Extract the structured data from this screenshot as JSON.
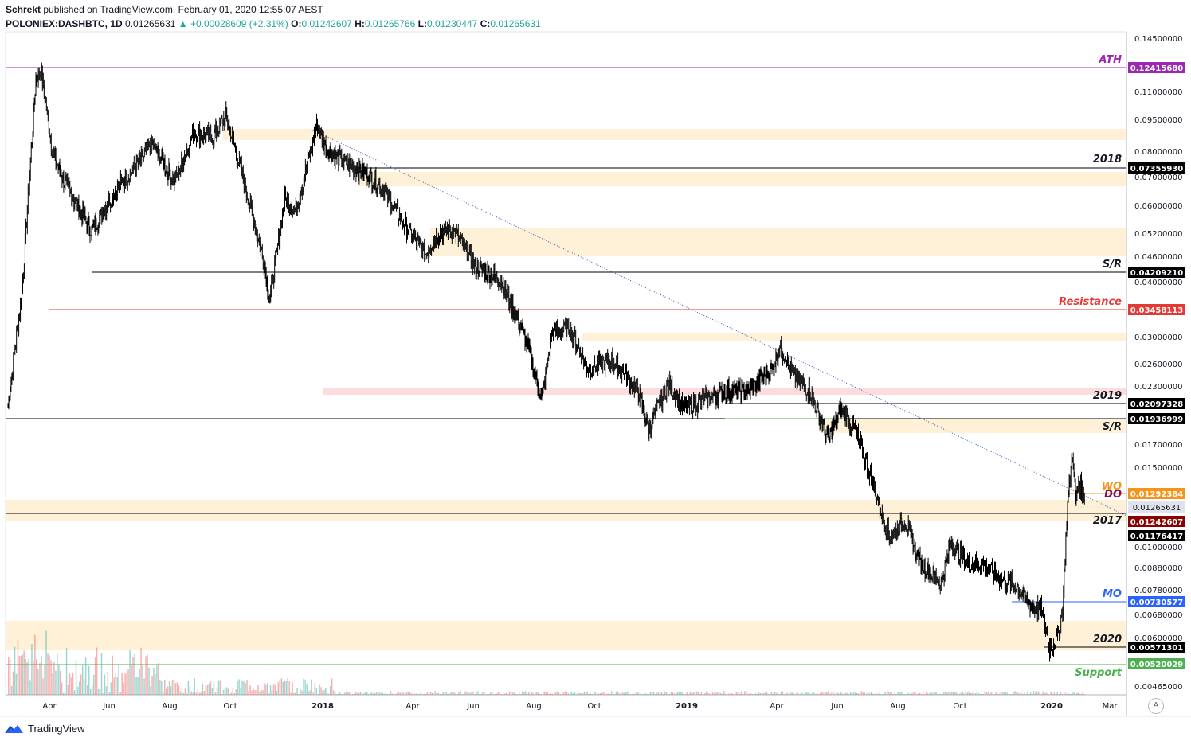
{
  "header": {
    "author": "Schrekt",
    "published": "published on TradingView.com, February 01, 2020 12:55:07 AEST",
    "symbol": "POLONIEX:DASHBTC, 1D",
    "last": "0.01265631",
    "change": "▲ +0.00028609 (+2.31%)",
    "o_label": "O:",
    "o_value": "0.01242607",
    "h_label": "H:",
    "h_value": "0.01265766",
    "l_label": "L:",
    "l_value": "0.01230447",
    "c_label": "C:",
    "c_value": "0.01265631"
  },
  "footer": {
    "brand": "TradingView",
    "auto_scale_button": "A"
  },
  "colors": {
    "up": "#26a69a",
    "down": "#ef5350",
    "zone": "#fdebc8",
    "ath": "#9c27b0",
    "resistance": "#e53935",
    "mo": "#2962ff",
    "wo": "#f7931a",
    "do": "#880e4f",
    "support": "#4caf50",
    "pinkzone": "#fbd3d3"
  },
  "chart_data": {
    "type": "candlestick",
    "scale": "log",
    "ylim": [
      0.0043,
      0.152
    ],
    "x_ticks": [
      "Apr",
      "Jun",
      "Aug",
      "Oct",
      "2018",
      "Apr",
      "Jun",
      "Aug",
      "Oct",
      "2019",
      "Apr",
      "Jun",
      "Aug",
      "Oct",
      "2020",
      "Mar"
    ],
    "y_ticks": [
      "0.14500000",
      "0.11000000",
      "0.09500000",
      "0.08000000",
      "0.07000000",
      "0.06000000",
      "0.05200000",
      "0.04600000",
      "0.04000000",
      "0.03000000",
      "0.02600000",
      "0.02300000",
      "0.01700000",
      "0.01500000",
      "0.01000000",
      "0.00880000",
      "0.00780000",
      "0.00680000",
      "0.00600000",
      "0.00465000"
    ],
    "price_path": [
      [
        "2017-02-15",
        0.0205
      ],
      [
        "2017-03-01",
        0.0375
      ],
      [
        "2017-03-15",
        0.118
      ],
      [
        "2017-03-20",
        0.124
      ],
      [
        "2017-04-01",
        0.079
      ],
      [
        "2017-04-15",
        0.066
      ],
      [
        "2017-05-10",
        0.052
      ],
      [
        "2017-06-01",
        0.064
      ],
      [
        "2017-06-20",
        0.072
      ],
      [
        "2017-07-10",
        0.083
      ],
      [
        "2017-08-01",
        0.068
      ],
      [
        "2017-08-20",
        0.088
      ],
      [
        "2017-09-10",
        0.087
      ],
      [
        "2017-09-22",
        0.097
      ],
      [
        "2017-10-10",
        0.068
      ],
      [
        "2017-10-30",
        0.044
      ],
      [
        "2017-11-05",
        0.036
      ],
      [
        "2017-11-20",
        0.062
      ],
      [
        "2017-12-01",
        0.058
      ],
      [
        "2017-12-22",
        0.092
      ],
      [
        "2018-01-01",
        0.081
      ],
      [
        "2018-01-20",
        0.075
      ],
      [
        "2018-02-10",
        0.071
      ],
      [
        "2018-03-01",
        0.064
      ],
      [
        "2018-03-20",
        0.054
      ],
      [
        "2018-04-10",
        0.046
      ],
      [
        "2018-04-25",
        0.052
      ],
      [
        "2018-05-10",
        0.052
      ],
      [
        "2018-05-30",
        0.043
      ],
      [
        "2018-06-25",
        0.04
      ],
      [
        "2018-07-20",
        0.029
      ],
      [
        "2018-08-05",
        0.021
      ],
      [
        "2018-08-15",
        0.03
      ],
      [
        "2018-09-01",
        0.031
      ],
      [
        "2018-09-20",
        0.025
      ],
      [
        "2018-10-15",
        0.026
      ],
      [
        "2018-11-10",
        0.022
      ],
      [
        "2018-11-20",
        0.018
      ],
      [
        "2018-12-10",
        0.023
      ],
      [
        "2018-12-25",
        0.02
      ],
      [
        "2019-01-15",
        0.021
      ],
      [
        "2019-02-05",
        0.022
      ],
      [
        "2019-03-01",
        0.022
      ],
      [
        "2019-03-25",
        0.025
      ],
      [
        "2019-04-01",
        0.028
      ],
      [
        "2019-04-15",
        0.024
      ],
      [
        "2019-05-01",
        0.022
      ],
      [
        "2019-05-20",
        0.017
      ],
      [
        "2019-06-01",
        0.02
      ],
      [
        "2019-06-15",
        0.018
      ],
      [
        "2019-07-01",
        0.014
      ],
      [
        "2019-07-20",
        0.01
      ],
      [
        "2019-08-05",
        0.011
      ],
      [
        "2019-08-20",
        0.0087
      ],
      [
        "2019-09-10",
        0.0078
      ],
      [
        "2019-09-20",
        0.0098
      ],
      [
        "2019-10-05",
        0.0088
      ],
      [
        "2019-10-25",
        0.0086
      ],
      [
        "2019-11-10",
        0.008
      ],
      [
        "2019-11-25",
        0.0077
      ],
      [
        "2019-12-10",
        0.0069
      ],
      [
        "2019-12-20",
        0.0068
      ],
      [
        "2019-12-28",
        0.0055
      ],
      [
        "2020-01-05",
        0.0059
      ],
      [
        "2020-01-10",
        0.0068
      ],
      [
        "2020-01-15",
        0.012
      ],
      [
        "2020-01-20",
        0.016
      ],
      [
        "2020-01-23",
        0.0122
      ],
      [
        "2020-01-26",
        0.0135
      ],
      [
        "2020-02-01",
        0.01265631
      ]
    ],
    "levels": [
      {
        "label": "ATH",
        "price": "0.12415680",
        "color": "#9c27b0"
      },
      {
        "label": "2018",
        "price": "0.07355930",
        "color": "#000000"
      },
      {
        "label": "S/R",
        "price": "0.04209210",
        "color": "#000000"
      },
      {
        "label": "Resistance",
        "price": "0.03458113",
        "color": "#e53935"
      },
      {
        "label": "2019",
        "price": "0.02097328",
        "color": "#000000"
      },
      {
        "label": "S/R",
        "price": "0.01936999",
        "color": "#000000"
      },
      {
        "label": "WO",
        "price": "0.01292384",
        "color": "#f7931a"
      },
      {
        "label": "DO",
        "price": "0.01242607",
        "color": "#880e4f"
      },
      {
        "label": "",
        "price": "0.01265631",
        "color": "#e0e3eb"
      },
      {
        "label": "2017",
        "price": "0.01176417",
        "color": "#000000"
      },
      {
        "label": "MO",
        "price": "0.00730577",
        "color": "#2962ff"
      },
      {
        "label": "2020",
        "price": "0.00571301",
        "color": "#000000"
      },
      {
        "label": "Support",
        "price": "0.00520029",
        "color": "#4caf50"
      }
    ]
  }
}
